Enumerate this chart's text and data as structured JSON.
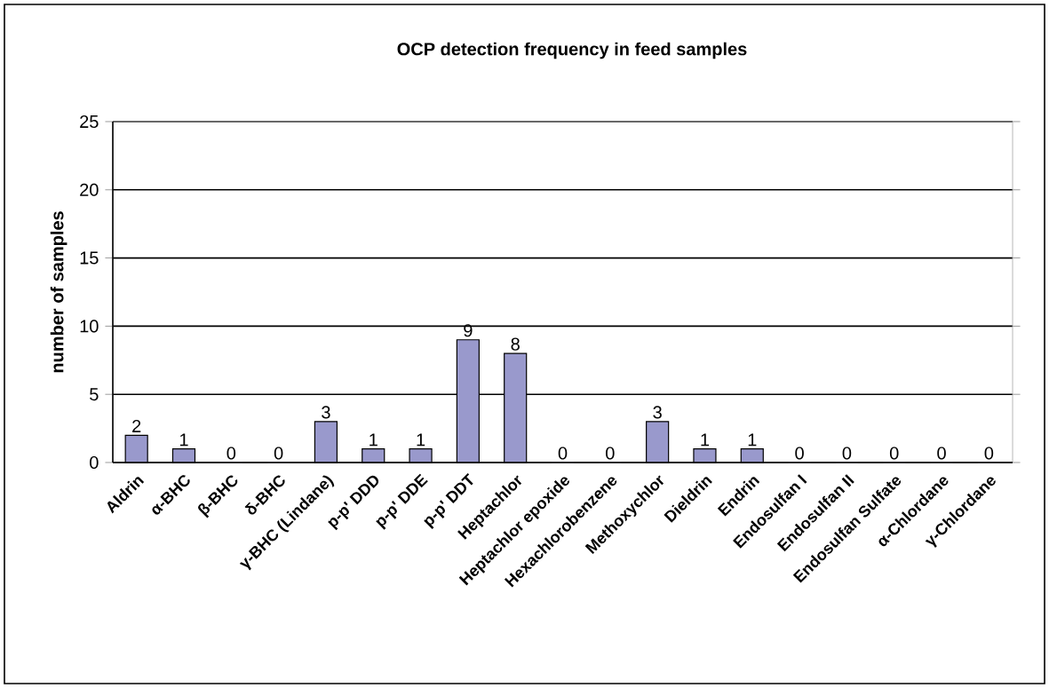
{
  "chart_data": {
    "type": "bar",
    "title": "OCP detection frequency in feed samples",
    "ylabel": "number of samples",
    "categories": [
      "Aldrin",
      "α-BHC",
      "β-BHC",
      "δ-BHC",
      "γ-BHC (Lindane)",
      "p-p' DDD",
      "p-p' DDE",
      "p-p' DDT",
      "Heptachlor",
      "Heptachlor epoxide",
      "Hexachlorobenzene",
      "Methoxychlor",
      "Dieldrin",
      "Endrin",
      "Endosulfan I",
      "Endosulfan II",
      "Endosulfan Sulfate",
      "α-Chlordane",
      "γ-Chlordane"
    ],
    "values": [
      2,
      1,
      0,
      0,
      3,
      1,
      1,
      9,
      8,
      0,
      0,
      3,
      1,
      1,
      0,
      0,
      0,
      0,
      0
    ],
    "color": "#9999cc",
    "ylim": [
      0,
      25
    ],
    "yticks": [
      0,
      5,
      10,
      15,
      20,
      25
    ],
    "grid": "y",
    "data_labels": true
  }
}
